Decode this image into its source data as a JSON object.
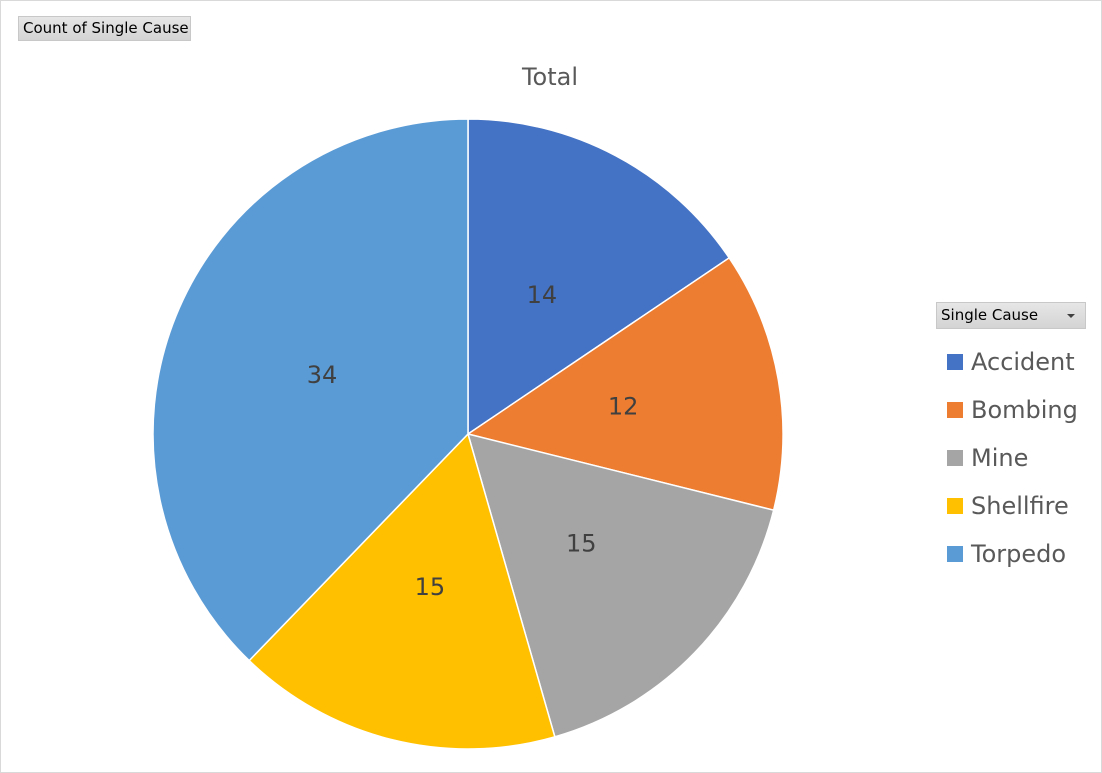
{
  "field_button": {
    "label": "Count of Single Cause"
  },
  "legend_header": {
    "label": "Single Cause"
  },
  "chart_data": {
    "type": "pie",
    "title": "Total",
    "categories": [
      "Accident",
      "Bombing",
      "Mine",
      "Shellfire",
      "Torpedo"
    ],
    "values": [
      14,
      12,
      15,
      15,
      34
    ],
    "colors": [
      "#4472c4",
      "#ed7d31",
      "#a5a5a5",
      "#ffc000",
      "#5b9bd5"
    ],
    "data_labels": true,
    "legend_position": "right"
  }
}
